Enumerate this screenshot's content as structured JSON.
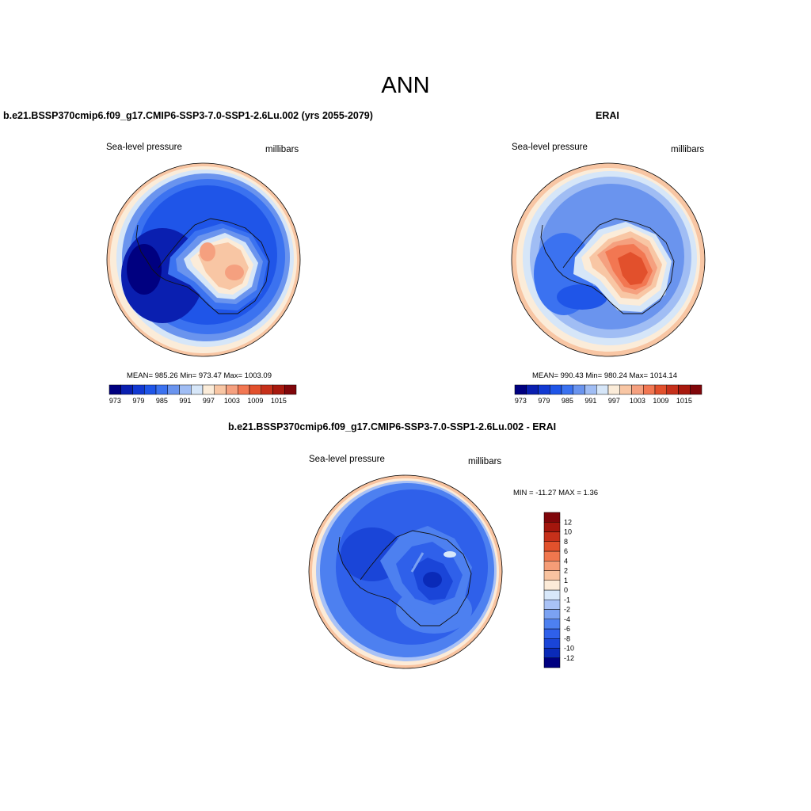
{
  "figure": {
    "main_title": "ANN",
    "panel_left": {
      "title": "b.e21.BSSP370cmip6.f09_g17.CMIP6-SSP3-7.0-SSP1-2.6Lu.002 (yrs 2055-2079)",
      "left_label": "Sea-level pressure",
      "right_label": "millibars",
      "stats": "MEAN= 985.26   Min= 973.47   Max= 1003.09"
    },
    "panel_right": {
      "title": "ERAI",
      "left_label": "Sea-level pressure",
      "right_label": "millibars",
      "stats": "MEAN= 990.43   Min= 980.24   Max= 1014.14"
    },
    "panel_diff": {
      "title": "b.e21.BSSP370cmip6.f09_g17.CMIP6-SSP3-7.0-SSP1-2.6Lu.002 - ERAI",
      "left_label": "Sea-level pressure",
      "right_label": "millibars",
      "stats": "MIN = -11.27  MAX =   1.36"
    },
    "colorbar_main": {
      "colors": [
        "#000080",
        "#0a1fb0",
        "#1239d2",
        "#1f55e8",
        "#3b72f0",
        "#6a94ee",
        "#a0bdf4",
        "#d6e6f8",
        "#fbecd9",
        "#f8c6a4",
        "#f5a07f",
        "#f27752",
        "#e2502c",
        "#c6301a",
        "#a8190e",
        "#80060a"
      ],
      "tick_labels": [
        "973",
        "979",
        "985",
        "991",
        "997",
        "1003",
        "1009",
        "1015"
      ]
    },
    "colorbar_diff": {
      "colors": [
        "#000080",
        "#0a2ab8",
        "#1a45d8",
        "#2f60ea",
        "#4d80f0",
        "#7ba2f2",
        "#a9c2f6",
        "#d8e8fa",
        "#fcebd8",
        "#f8c3a0",
        "#f59d77",
        "#f0774e",
        "#e1512c",
        "#c6301a",
        "#a3160d",
        "#80060a"
      ],
      "tick_labels": [
        "12",
        "10",
        "8",
        "6",
        "4",
        "2",
        "1",
        "0",
        "-1",
        "-2",
        "-4",
        "-6",
        "-8",
        "-10",
        "-12"
      ]
    }
  }
}
